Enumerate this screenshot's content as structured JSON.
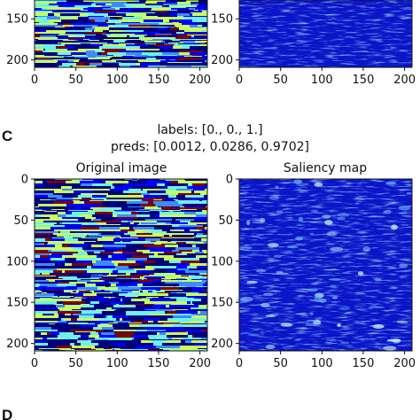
{
  "panels": [
    {
      "letter": "C",
      "labels_line": "labels: [0., 0., 1.]",
      "preds_line": "preds: [0.0012, 0.0286, 0.9702]"
    },
    {
      "letter": "D"
    }
  ],
  "chart_data": [
    {
      "type": "heatmap",
      "title": "",
      "x_ticks": [
        0,
        50,
        100,
        150,
        200
      ],
      "y_ticks": [
        150,
        200
      ],
      "xlim": [
        0,
        209
      ],
      "ylim": [
        209,
        0
      ],
      "colormap": "jet",
      "content": "original image (top crop)"
    },
    {
      "type": "heatmap",
      "title": "",
      "x_ticks": [
        0,
        50,
        100,
        150,
        200
      ],
      "y_ticks": [
        150,
        200
      ],
      "xlim": [
        0,
        209
      ],
      "ylim": [
        209,
        0
      ],
      "colormap": "jet",
      "content": "saliency map (top crop)"
    },
    {
      "type": "heatmap",
      "title": "Original image",
      "x_ticks": [
        0,
        50,
        100,
        150,
        200
      ],
      "y_ticks": [
        0,
        50,
        100,
        150,
        200
      ],
      "xlim": [
        0,
        209
      ],
      "ylim": [
        209,
        0
      ],
      "colormap": "jet"
    },
    {
      "type": "heatmap",
      "title": "Saliency map",
      "x_ticks": [
        0,
        50,
        100,
        150,
        200
      ],
      "y_ticks": [
        0,
        50,
        100,
        150,
        200
      ],
      "xlim": [
        0,
        209
      ],
      "ylim": [
        209,
        0
      ],
      "colormap": "jet"
    }
  ],
  "colors": {
    "jet_dark_blue": "#00007f",
    "jet_blue": "#0000ff",
    "jet_light_blue": "#3d8bff",
    "jet_cyan": "#6ef2e8",
    "jet_yellow_green": "#c8ff5a",
    "jet_dark_red": "#7f0000"
  }
}
